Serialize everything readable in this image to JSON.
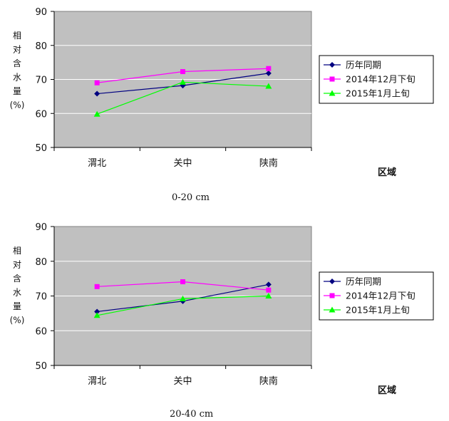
{
  "chart_data": [
    {
      "type": "line",
      "caption": "0-20 cm",
      "ylabel": [
        "相",
        "对",
        "含",
        "水",
        "量",
        "(%)"
      ],
      "xlabel": "区域",
      "categories": [
        "渭北",
        "关中",
        "陕南"
      ],
      "ylim": [
        50,
        90
      ],
      "yticks": [
        "50",
        "60",
        "70",
        "80",
        "90"
      ],
      "grid": true,
      "legend": "right",
      "series": [
        {
          "name": "历年同期",
          "values": [
            65.8,
            68.2,
            71.8
          ],
          "color": "#000080",
          "marker": "diamond"
        },
        {
          "name": "2014年12月下旬",
          "values": [
            69.0,
            72.3,
            73.2
          ],
          "color": "#ff00ff",
          "marker": "square"
        },
        {
          "name": "2015年1月上旬",
          "values": [
            59.8,
            69.2,
            68.0
          ],
          "color": "#00ff00",
          "marker": "triangle"
        }
      ]
    },
    {
      "type": "line",
      "caption": "20-40 cm",
      "ylabel": [
        "相",
        "对",
        "含",
        "水",
        "量",
        "(%)"
      ],
      "xlabel": "区域",
      "categories": [
        "渭北",
        "关中",
        "陕南"
      ],
      "ylim": [
        50,
        90
      ],
      "yticks": [
        "50",
        "60",
        "70",
        "80",
        "90"
      ],
      "grid": true,
      "legend": "right",
      "series": [
        {
          "name": "历年同期",
          "values": [
            65.5,
            68.5,
            73.3
          ],
          "color": "#000080",
          "marker": "diamond"
        },
        {
          "name": "2014年12月下旬",
          "values": [
            72.7,
            74.1,
            71.7
          ],
          "color": "#ff00ff",
          "marker": "square"
        },
        {
          "name": "2015年1月上旬",
          "values": [
            64.4,
            69.2,
            70.0
          ],
          "color": "#00ff00",
          "marker": "triangle"
        }
      ]
    }
  ]
}
